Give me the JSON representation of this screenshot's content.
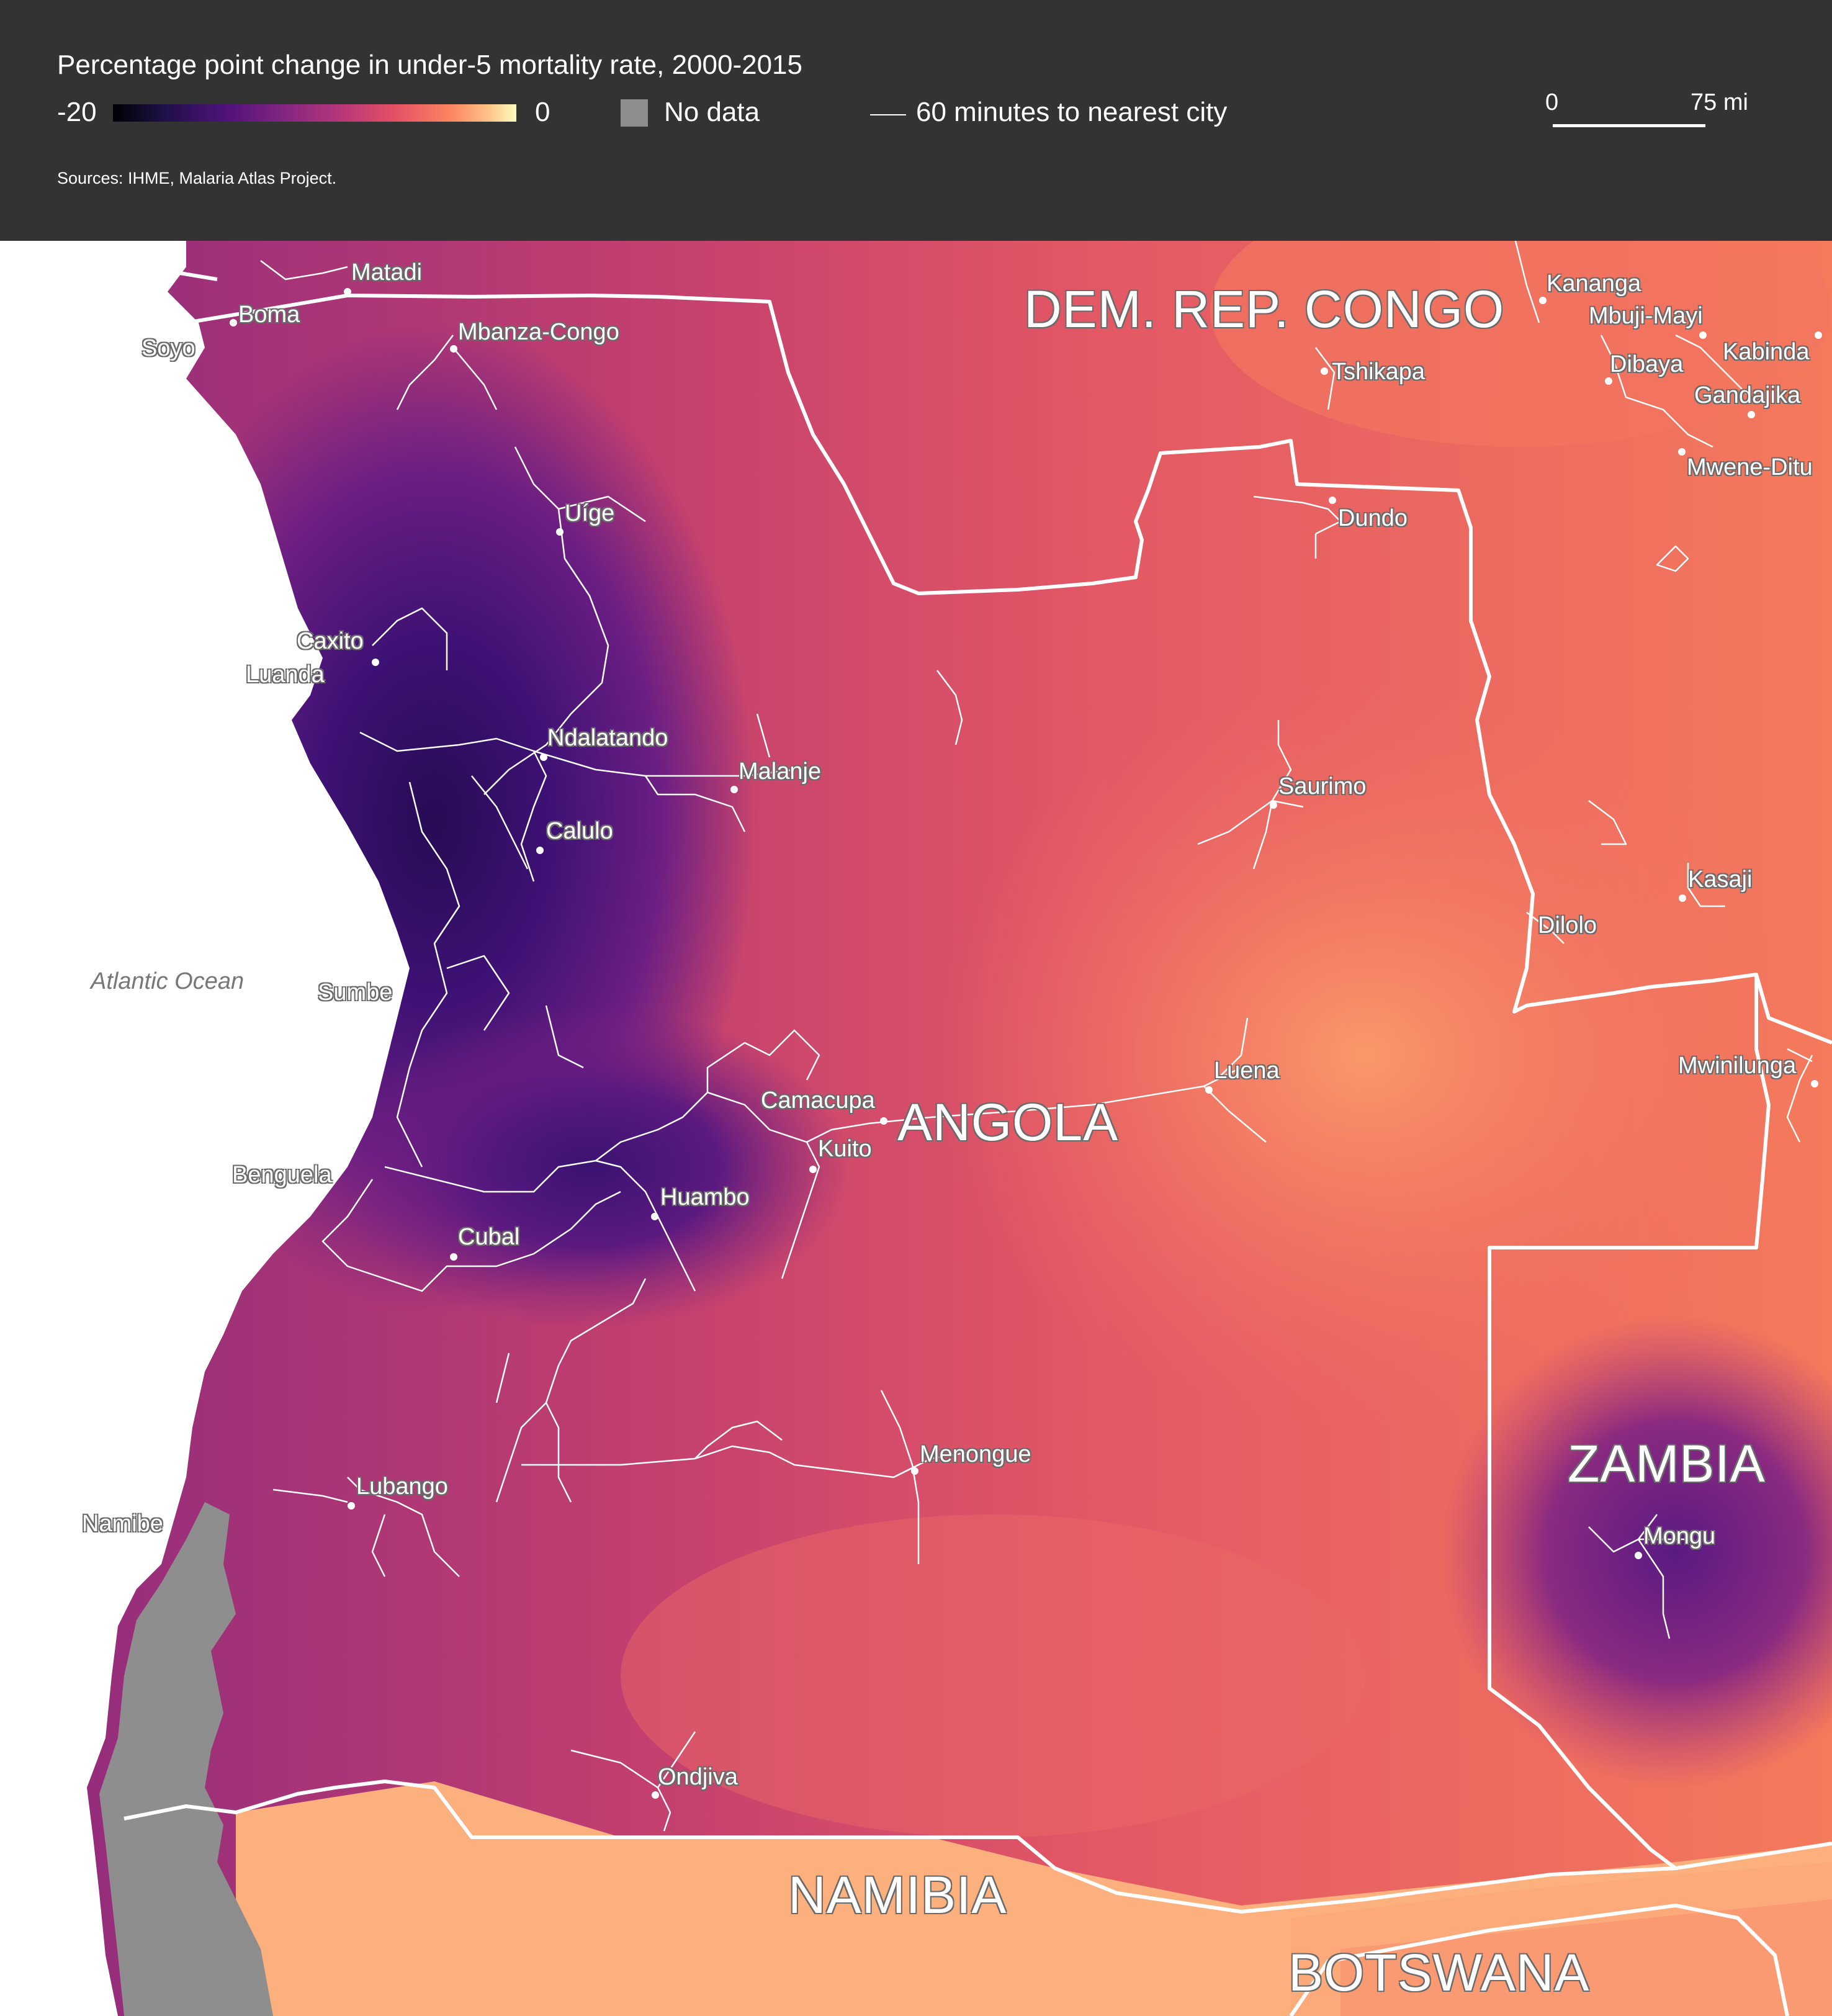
{
  "legend": {
    "title": "Percentage point change in under-5 mortality rate, 2000-2015",
    "min_label": "-20",
    "max_label": "0",
    "no_data_label": "No data",
    "road_label": "60 minutes to nearest city",
    "scale_zero": "0",
    "scale_max": "75 mi",
    "source": "Sources: IHME, Malaria Atlas Project.",
    "colormap": [
      "#000004",
      "#1c1044",
      "#4f127b",
      "#812581",
      "#b5367a",
      "#e55064",
      "#fb8761",
      "#fec287",
      "#fcfdbf"
    ],
    "no_data_color": "#8e8e8e"
  },
  "countries": {
    "drc": "DEM. REP. CONGO",
    "angola": "ANGOLA",
    "zambia": "ZAMBIA",
    "namibia": "NAMIBIA",
    "botswana": "BOTSWANA"
  },
  "ocean": "Atlantic Ocean",
  "cities": {
    "matadi": "Matadi",
    "boma": "Boma",
    "soyo": "Soyo",
    "mbanza_congo": "Mbanza-Congo",
    "uige": "Uíge",
    "caxito": "Caxito",
    "luanda": "Luanda",
    "ndalatando": "Ndalatando",
    "malanje": "Malanje",
    "calulo": "Calulo",
    "sumbe": "Sumbe",
    "camacupa": "Camacupa",
    "kuito": "Kuito",
    "huambo": "Huambo",
    "benguela": "Benguela",
    "cubal": "Cubal",
    "lubango": "Lubango",
    "namibe": "Namibe",
    "menongue": "Menongue",
    "ondjiva": "Ondjiva",
    "dundo": "Dundo",
    "saurimo": "Saurimo",
    "luena": "Luena",
    "dilolo": "Dilolo",
    "kasaji": "Kasaji",
    "mwinilunga": "Mwinilunga",
    "mongu": "Mongu",
    "tshikapa": "Tshikapa",
    "kananga": "Kananga",
    "mbuji_mayi": "Mbuji-Mayi",
    "kabinda": "Kabinda",
    "dibaya": "Dibaya",
    "gandajika": "Gandajika",
    "mwene_ditu": "Mwene-Ditu"
  }
}
